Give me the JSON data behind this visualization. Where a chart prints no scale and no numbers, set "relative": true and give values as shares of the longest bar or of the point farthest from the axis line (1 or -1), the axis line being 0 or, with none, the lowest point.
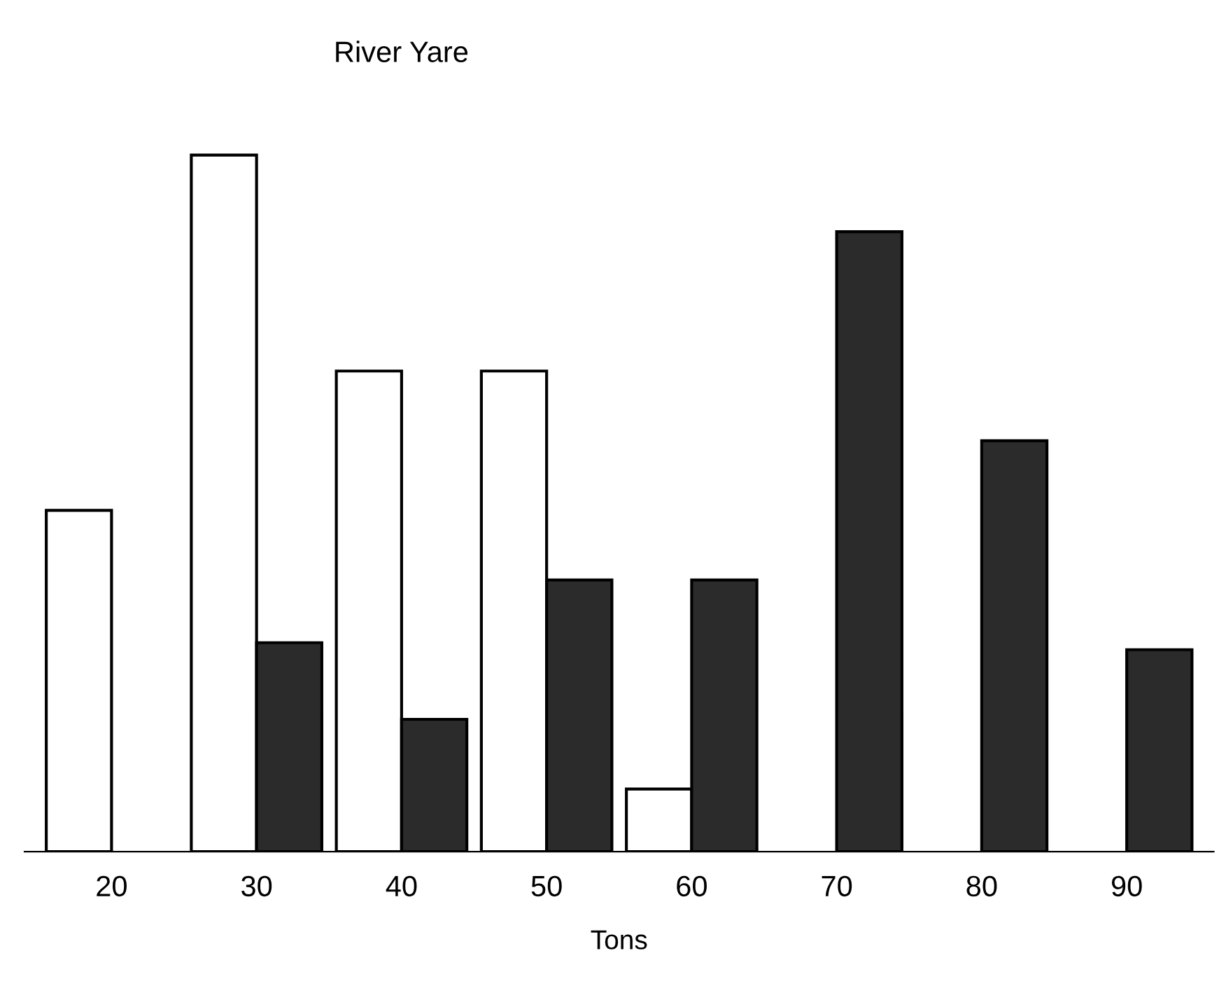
{
  "chart_data": {
    "type": "bar",
    "title": "River Yare",
    "xlabel": "Tons",
    "relative": true,
    "grid": false,
    "legend": false,
    "categories": [
      "20",
      "30",
      "40",
      "50",
      "60",
      "70",
      "80",
      "90"
    ],
    "series": [
      {
        "color": "#ffffff",
        "values": [
          0.49,
          1,
          0.69,
          0.69,
          0.09,
          null,
          null,
          null
        ]
      },
      {
        "color": "#2b2b2b",
        "values": [
          null,
          0.3,
          0.19,
          0.39,
          0.39,
          0.89,
          0.59,
          0.29
        ]
      }
    ]
  }
}
